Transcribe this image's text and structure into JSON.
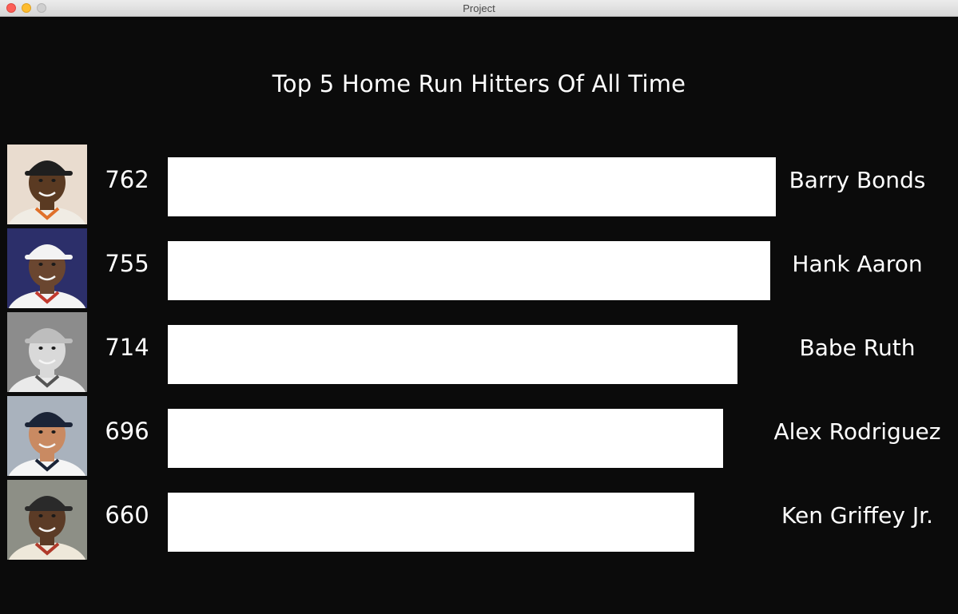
{
  "window": {
    "title": "Project"
  },
  "chart_data": {
    "type": "bar",
    "orientation": "horizontal",
    "title": "Top 5 Home Run Hitters Of All Time",
    "categories": [
      "Barry Bonds",
      "Hank Aaron",
      "Babe Ruth",
      "Alex Rodriguez",
      "Ken Griffey Jr."
    ],
    "values": [
      762,
      755,
      714,
      696,
      660
    ],
    "value_labels": [
      "762",
      "755",
      "714",
      "696",
      "660"
    ],
    "xlim": [
      0,
      762
    ],
    "grid": false,
    "legend": "none",
    "bar_color": "#ffffff",
    "background_color": "#0b0b0b",
    "text_color": "#ffffff",
    "player_photos": [
      "barry-bonds-photo",
      "hank-aaron-photo",
      "babe-ruth-photo",
      "alex-rodriguez-photo",
      "ken-griffey-jr-photo"
    ]
  }
}
